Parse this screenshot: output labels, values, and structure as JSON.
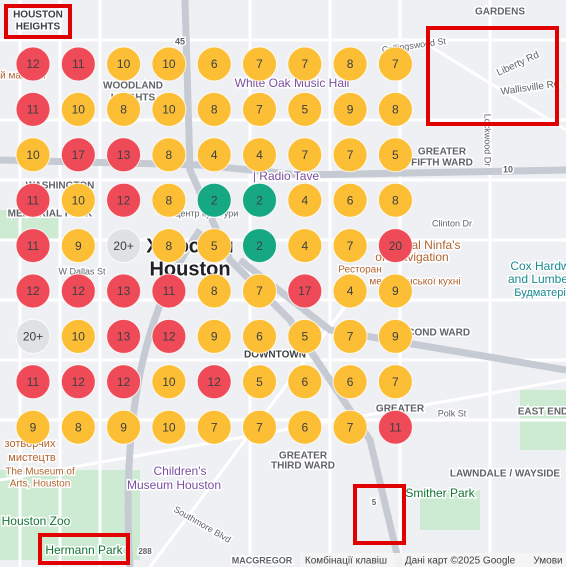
{
  "map": {
    "labels": [
      "HOUSTON",
      "HEIGHTS",
      "GARDENS",
      "WOODLAND",
      "HEIGHTS",
      "White Oak Music Hall",
      "Collingswood St",
      "Liberty Rd",
      "Wallisville Rd",
      "Lockwood Dr",
      "GREATER",
      "FIFTH WARD",
      "| Radio Tave",
      "Clinton Dr",
      "MEMORIAL PARK",
      "Центр культури",
      "Хьюстон",
      "Houston",
      "Original Ninfa's",
      "on Navigation",
      "Ресторан",
      "мексиканської кухні",
      "Cox Hardw",
      "and Lumber",
      "Будматері",
      "W Dallas St",
      "SECOND WARD",
      "DOWNTOWN",
      "GREATER",
      "EAST END",
      "Polk St",
      "GREATER",
      "THIRD WARD",
      "LAWNDALE / WAYSIDE",
      "Children's",
      "Museum Houston",
      "зотворчих",
      "мистецтв",
      "The Museum of",
      "Arts, Houston",
      "Houston Zoo",
      "Hermann Park",
      "Smither Park",
      "Southmore Blvd",
      "MACGREGOR",
      "ий магазин",
      "WASHINGTON",
      "45",
      "10",
      "288",
      "5"
    ],
    "footer": [
      "Комбінації клавіш",
      "Дані карт ©2025 Google",
      "Умови"
    ],
    "clusters": [
      [
        {
          "n": "12",
          "c": "#ee4a57"
        },
        {
          "n": "11",
          "c": "#ee4a57"
        },
        {
          "n": "10",
          "c": "#fbbe35"
        },
        {
          "n": "10",
          "c": "#fbbe35"
        },
        {
          "n": "6",
          "c": "#fbbe35"
        },
        {
          "n": "7",
          "c": "#fbbe35"
        },
        {
          "n": "7",
          "c": "#fbbe35"
        },
        {
          "n": "8",
          "c": "#fbbe35"
        },
        {
          "n": "7",
          "c": "#fbbe35"
        }
      ],
      [
        {
          "n": "11",
          "c": "#ee4a57"
        },
        {
          "n": "10",
          "c": "#fbbe35"
        },
        {
          "n": "8",
          "c": "#fbbe35"
        },
        {
          "n": "10",
          "c": "#fbbe35"
        },
        {
          "n": "8",
          "c": "#fbbe35"
        },
        {
          "n": "7",
          "c": "#fbbe35"
        },
        {
          "n": "5",
          "c": "#fbbe35"
        },
        {
          "n": "9",
          "c": "#fbbe35"
        },
        {
          "n": "8",
          "c": "#fbbe35"
        }
      ],
      [
        {
          "n": "10",
          "c": "#fbbe35"
        },
        {
          "n": "17",
          "c": "#ee4a57"
        },
        {
          "n": "13",
          "c": "#ee4a57"
        },
        {
          "n": "8",
          "c": "#fbbe35"
        },
        {
          "n": "4",
          "c": "#fbbe35"
        },
        {
          "n": "4",
          "c": "#fbbe35"
        },
        {
          "n": "7",
          "c": "#fbbe35"
        },
        {
          "n": "7",
          "c": "#fbbe35"
        },
        {
          "n": "5",
          "c": "#fbbe35"
        }
      ],
      [
        {
          "n": "11",
          "c": "#ee4a57"
        },
        {
          "n": "10",
          "c": "#fbbe35"
        },
        {
          "n": "12",
          "c": "#ee4a57"
        },
        {
          "n": "8",
          "c": "#fbbe35"
        },
        {
          "n": "2",
          "c": "#16a882"
        },
        {
          "n": "2",
          "c": "#16a882"
        },
        {
          "n": "4",
          "c": "#fbbe35"
        },
        {
          "n": "6",
          "c": "#fbbe35"
        },
        {
          "n": "8",
          "c": "#fbbe35"
        }
      ],
      [
        {
          "n": "11",
          "c": "#ee4a57"
        },
        {
          "n": "9",
          "c": "#fbbe35"
        },
        {
          "n": "20+",
          "c": "#dfe1e5"
        },
        {
          "n": "8",
          "c": "#fbbe35"
        },
        {
          "n": "5",
          "c": "#fbbe35"
        },
        {
          "n": "2",
          "c": "#16a882"
        },
        {
          "n": "4",
          "c": "#fbbe35"
        },
        {
          "n": "7",
          "c": "#fbbe35"
        },
        {
          "n": "20",
          "c": "#ee4a57"
        }
      ],
      [
        {
          "n": "12",
          "c": "#ee4a57"
        },
        {
          "n": "12",
          "c": "#ee4a57"
        },
        {
          "n": "13",
          "c": "#ee4a57"
        },
        {
          "n": "11",
          "c": "#ee4a57"
        },
        {
          "n": "8",
          "c": "#fbbe35"
        },
        {
          "n": "7",
          "c": "#fbbe35"
        },
        {
          "n": "17",
          "c": "#ee4a57"
        },
        {
          "n": "4",
          "c": "#fbbe35"
        },
        {
          "n": "9",
          "c": "#fbbe35"
        }
      ],
      [
        {
          "n": "20+",
          "c": "#dfe1e5"
        },
        {
          "n": "10",
          "c": "#fbbe35"
        },
        {
          "n": "13",
          "c": "#ee4a57"
        },
        {
          "n": "12",
          "c": "#ee4a57"
        },
        {
          "n": "9",
          "c": "#fbbe35"
        },
        {
          "n": "6",
          "c": "#fbbe35"
        },
        {
          "n": "5",
          "c": "#fbbe35"
        },
        {
          "n": "7",
          "c": "#fbbe35"
        },
        {
          "n": "9",
          "c": "#fbbe35"
        }
      ],
      [
        {
          "n": "11",
          "c": "#ee4a57"
        },
        {
          "n": "12",
          "c": "#ee4a57"
        },
        {
          "n": "12",
          "c": "#ee4a57"
        },
        {
          "n": "10",
          "c": "#fbbe35"
        },
        {
          "n": "12",
          "c": "#ee4a57"
        },
        {
          "n": "5",
          "c": "#fbbe35"
        },
        {
          "n": "6",
          "c": "#fbbe35"
        },
        {
          "n": "6",
          "c": "#fbbe35"
        },
        {
          "n": "7",
          "c": "#fbbe35"
        }
      ],
      [
        {
          "n": "9",
          "c": "#fbbe35"
        },
        {
          "n": "8",
          "c": "#fbbe35"
        },
        {
          "n": "9",
          "c": "#fbbe35"
        },
        {
          "n": "10",
          "c": "#fbbe35"
        },
        {
          "n": "7",
          "c": "#fbbe35"
        },
        {
          "n": "7",
          "c": "#fbbe35"
        },
        {
          "n": "6",
          "c": "#fbbe35"
        },
        {
          "n": "7",
          "c": "#fbbe35"
        },
        {
          "n": "11",
          "c": "#ee4a57"
        }
      ]
    ]
  }
}
